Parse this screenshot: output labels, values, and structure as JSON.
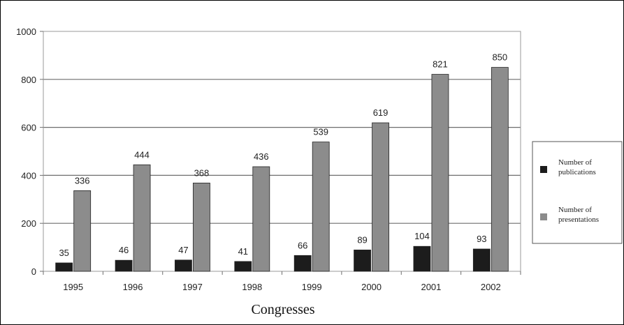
{
  "chart_data": {
    "type": "bar",
    "title": "",
    "xlabel": "Congresses",
    "ylabel": "",
    "categories": [
      "1995",
      "1996",
      "1997",
      "1998",
      "1999",
      "2000",
      "2001",
      "2002"
    ],
    "ylim": [
      0,
      1000
    ],
    "yticks": [
      "0",
      "200",
      "400",
      "600",
      "800",
      "1000"
    ],
    "grid": true,
    "legend_position": "right",
    "series": [
      {
        "name": "Number of publications",
        "values": [
          35,
          46,
          47,
          41,
          66,
          89,
          104,
          93
        ],
        "labels": [
          "35",
          "46",
          "47",
          "41",
          "66",
          "89",
          "104",
          "93"
        ],
        "color": "#1c1c1c"
      },
      {
        "name": "Number of presentations",
        "values": [
          336,
          444,
          368,
          436,
          539,
          619,
          821,
          850
        ],
        "labels": [
          "336",
          "444",
          "368",
          "436",
          "539",
          "619",
          "821",
          "850"
        ],
        "color": "#8c8c8c"
      }
    ]
  },
  "legend": {
    "line1": [
      "Number of",
      "Number of"
    ],
    "line2": [
      "publications",
      "presentations"
    ]
  }
}
